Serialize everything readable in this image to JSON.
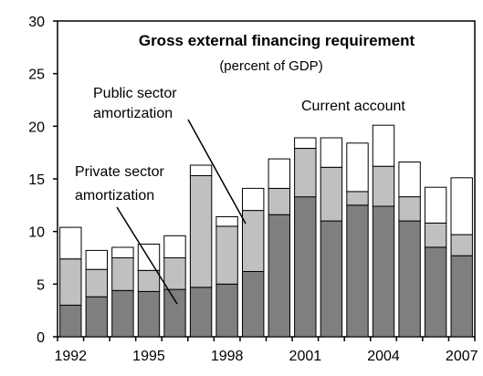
{
  "chart_data": {
    "type": "bar",
    "stacked": true,
    "title": "Gross external financing requirement",
    "subtitle": "(percent of GDP)",
    "xlabel": "",
    "ylabel": "",
    "ylim": [
      0,
      30
    ],
    "yticks": [
      0,
      5,
      10,
      15,
      20,
      25,
      30
    ],
    "grid": false,
    "x_tick_labels": [
      "1992",
      "1995",
      "1998",
      "2001",
      "2004",
      "2007"
    ],
    "categories": [
      "1992",
      "1993",
      "1994",
      "1995",
      "1996",
      "1997",
      "1998",
      "1999",
      "2000",
      "2001",
      "2002",
      "2003",
      "2004",
      "2005",
      "2006",
      "2007"
    ],
    "series": [
      {
        "name": "Current account",
        "color": "#7f7f7f",
        "values": [
          3.0,
          3.8,
          4.4,
          4.3,
          4.5,
          4.7,
          5.0,
          6.2,
          11.6,
          13.3,
          11.0,
          12.5,
          12.4,
          11.0,
          8.5,
          7.7
        ]
      },
      {
        "name": "Public sector amortization",
        "color": "#c0c0c0",
        "values": [
          4.4,
          2.6,
          3.1,
          2.0,
          3.0,
          10.6,
          5.5,
          5.8,
          2.5,
          4.6,
          5.1,
          1.3,
          3.8,
          2.3,
          2.3,
          2.0
        ]
      },
      {
        "name": "Private sector amortization",
        "color": "#ffffff",
        "values": [
          3.0,
          1.8,
          1.0,
          2.5,
          2.1,
          1.0,
          0.9,
          2.1,
          2.8,
          1.0,
          2.8,
          4.6,
          3.9,
          3.3,
          3.4,
          5.4
        ]
      }
    ],
    "annotations": [
      {
        "lines": [
          "Public sector",
          "amortization"
        ],
        "series": "Public sector amortization"
      },
      {
        "lines": [
          "Current account"
        ],
        "series": "Current account"
      },
      {
        "lines": [
          "Private sector",
          "amortization"
        ],
        "series": "Private sector amortization"
      }
    ]
  }
}
